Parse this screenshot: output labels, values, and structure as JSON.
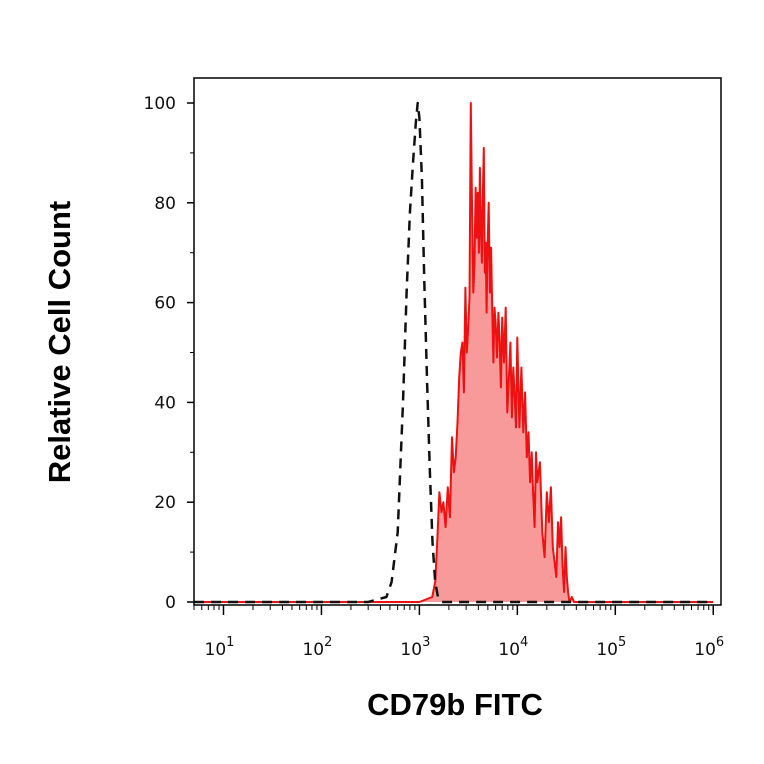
{
  "chart_data": {
    "type": "area",
    "xlabel": "CD79b FITC",
    "ylabel": "Relative Cell Count",
    "x_scale": "log",
    "xlim": [
      5,
      1200000
    ],
    "ylim": [
      0,
      100
    ],
    "y_ticks": [
      0,
      20,
      40,
      60,
      80,
      100
    ],
    "y_tick_labels": [
      "0",
      "20",
      "40",
      "60",
      "80",
      "100"
    ],
    "x_ticks": [
      10,
      100,
      1000,
      10000,
      100000,
      1000000
    ],
    "x_tick_labels": [
      {
        "base": "10",
        "exp": "1"
      },
      {
        "base": "10",
        "exp": "2"
      },
      {
        "base": "10",
        "exp": "3"
      },
      {
        "base": "10",
        "exp": "4"
      },
      {
        "base": "10",
        "exp": "5"
      },
      {
        "base": "10",
        "exp": "6"
      }
    ],
    "grid": false,
    "colors": {
      "stained": "#ee1111",
      "stained_fill": "#f89a9a",
      "control": "#111111"
    },
    "series": [
      {
        "style": "dashed-line",
        "x": [
          5,
          300,
          460,
          520,
          600,
          680,
          740,
          800,
          860,
          920,
          960,
          1000,
          1060,
          1120,
          1200,
          1280,
          1360,
          1450,
          1550,
          1700,
          1000000
        ],
        "y": [
          0,
          0,
          1,
          4,
          14,
          40,
          62,
          78,
          88,
          96,
          100,
          97,
          85,
          65,
          44,
          26,
          12,
          4,
          1,
          0,
          0
        ]
      },
      {
        "style": "filled",
        "x": [
          5,
          1000,
          1350,
          1450,
          1520,
          1600,
          1680,
          1760,
          1850,
          1950,
          2050,
          2150,
          2250,
          2350,
          2450,
          2550,
          2650,
          2750,
          2850,
          2950,
          3050,
          3150,
          3250,
          3350,
          3450,
          3550,
          3650,
          3750,
          3850,
          3950,
          4050,
          4150,
          4250,
          4350,
          4450,
          4550,
          4650,
          4750,
          4850,
          4950,
          5100,
          5250,
          5400,
          5550,
          5700,
          5850,
          6000,
          6200,
          6400,
          6600,
          6800,
          7000,
          7300,
          7600,
          7900,
          8200,
          8500,
          8800,
          9100,
          9400,
          9700,
          10000,
          10500,
          11000,
          11500,
          12000,
          12500,
          13000,
          13500,
          14000,
          14500,
          15000,
          15500,
          16000,
          17000,
          18000,
          19000,
          20000,
          21000,
          22000,
          23000,
          24000,
          25000,
          26000,
          27000,
          28000,
          29000,
          30000,
          31000,
          32000,
          33000,
          34000,
          36000,
          38000,
          1000000
        ],
        "y": [
          0,
          0,
          1,
          4,
          12,
          22,
          18,
          20,
          15,
          23,
          17,
          33,
          26,
          29,
          36,
          45,
          50,
          52,
          42,
          63,
          50,
          55,
          61,
          100,
          78,
          62,
          68,
          83,
          73,
          82,
          70,
          87,
          75,
          68,
          82,
          91,
          66,
          72,
          58,
          70,
          80,
          62,
          71,
          58,
          48,
          59,
          56,
          49,
          58,
          52,
          43,
          57,
          48,
          59,
          38,
          45,
          52,
          37,
          47,
          41,
          35,
          53,
          35,
          47,
          34,
          42,
          29,
          34,
          24,
          30,
          22,
          15,
          30,
          24,
          28,
          14,
          9,
          22,
          16,
          23,
          11,
          8,
          5,
          16,
          11,
          17,
          7,
          2,
          11,
          5,
          2,
          0,
          1,
          0,
          0
        ]
      }
    ]
  }
}
